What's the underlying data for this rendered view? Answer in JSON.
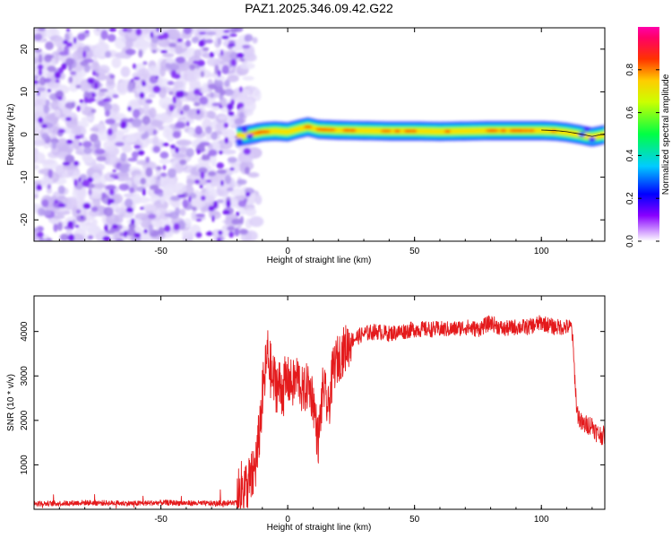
{
  "figure_title": "PAZ1.2025.346.09.42.G22",
  "chart_data": [
    {
      "type": "heatmap",
      "title": "PAZ1.2025.346.09.42.G22",
      "xlabel": "Height of straight line (km)",
      "ylabel": "Frequency (Hz)",
      "xlim": [
        -100,
        125
      ],
      "ylim": [
        -25,
        25
      ],
      "xticks": [
        -50,
        0,
        50,
        100
      ],
      "yticks": [
        -20,
        -10,
        0,
        10,
        20
      ],
      "xtick_labels": [
        "-50",
        "0",
        "50",
        "100"
      ],
      "ytick_labels": [
        "-20",
        "-10",
        "0",
        "10",
        "20"
      ],
      "noise_region_x": [
        -100,
        -15
      ],
      "ridge": [
        {
          "x": -20,
          "f": -0.5
        },
        {
          "x": -15,
          "f": 0.0
        },
        {
          "x": -10,
          "f": 0.6
        },
        {
          "x": -5,
          "f": 0.8
        },
        {
          "x": 0,
          "f": 0.6
        },
        {
          "x": 5,
          "f": 1.4
        },
        {
          "x": 8,
          "f": 1.8
        },
        {
          "x": 12,
          "f": 1.2
        },
        {
          "x": 20,
          "f": 1.0
        },
        {
          "x": 30,
          "f": 0.9
        },
        {
          "x": 40,
          "f": 0.8
        },
        {
          "x": 50,
          "f": 0.8
        },
        {
          "x": 60,
          "f": 0.7
        },
        {
          "x": 70,
          "f": 0.8
        },
        {
          "x": 80,
          "f": 0.9
        },
        {
          "x": 90,
          "f": 0.9
        },
        {
          "x": 100,
          "f": 0.9
        },
        {
          "x": 105,
          "f": 0.8
        },
        {
          "x": 110,
          "f": 0.5
        },
        {
          "x": 115,
          "f": 0.0
        },
        {
          "x": 120,
          "f": -0.6
        },
        {
          "x": 125,
          "f": 0.0
        }
      ],
      "colorbar": {
        "label": "Normalized spectral amplitude",
        "range": [
          0,
          1
        ],
        "ticks": [
          0.0,
          0.2,
          0.4,
          0.6,
          0.8
        ],
        "tick_labels": [
          "0.0",
          "0.2",
          "0.4",
          "0.6",
          "0.8"
        ]
      }
    },
    {
      "type": "line",
      "xlabel": "Height of straight line (km)",
      "ylabel": "SNR (10 * v/v)",
      "xlim": [
        -100,
        125
      ],
      "ylim": [
        0,
        4800
      ],
      "xticks": [
        -50,
        0,
        50,
        100
      ],
      "yticks": [
        1000,
        2000,
        3000,
        4000
      ],
      "xtick_labels": [
        "-50",
        "0",
        "50",
        "100"
      ],
      "ytick_labels": [
        "1000",
        "2000",
        "3000",
        "4000"
      ],
      "series": [
        {
          "name": "SNR",
          "color": "#e41a1c",
          "x": [
            -100,
            -90,
            -80,
            -70,
            -60,
            -50,
            -40,
            -30,
            -25,
            -20,
            -18,
            -16,
            -14,
            -12,
            -10,
            -8,
            -6,
            -4,
            -2,
            0,
            2,
            4,
            6,
            8,
            10,
            12,
            14,
            16,
            18,
            20,
            25,
            30,
            35,
            40,
            45,
            50,
            55,
            60,
            65,
            70,
            75,
            80,
            85,
            90,
            95,
            100,
            105,
            110,
            112,
            114,
            116,
            118,
            120,
            122,
            125
          ],
          "y": [
            130,
            130,
            150,
            140,
            130,
            150,
            140,
            130,
            140,
            150,
            500,
            500,
            700,
            1200,
            2500,
            3500,
            2900,
            2800,
            2700,
            2900,
            2800,
            3000,
            2600,
            2800,
            2500,
            1500,
            2800,
            2200,
            3200,
            3400,
            3800,
            3950,
            4000,
            3950,
            4000,
            4050,
            4050,
            4050,
            4050,
            4100,
            4050,
            4200,
            4050,
            4100,
            4100,
            4200,
            4100,
            4100,
            4100,
            2200,
            1900,
            1900,
            1900,
            1700,
            1650
          ]
        }
      ]
    }
  ]
}
